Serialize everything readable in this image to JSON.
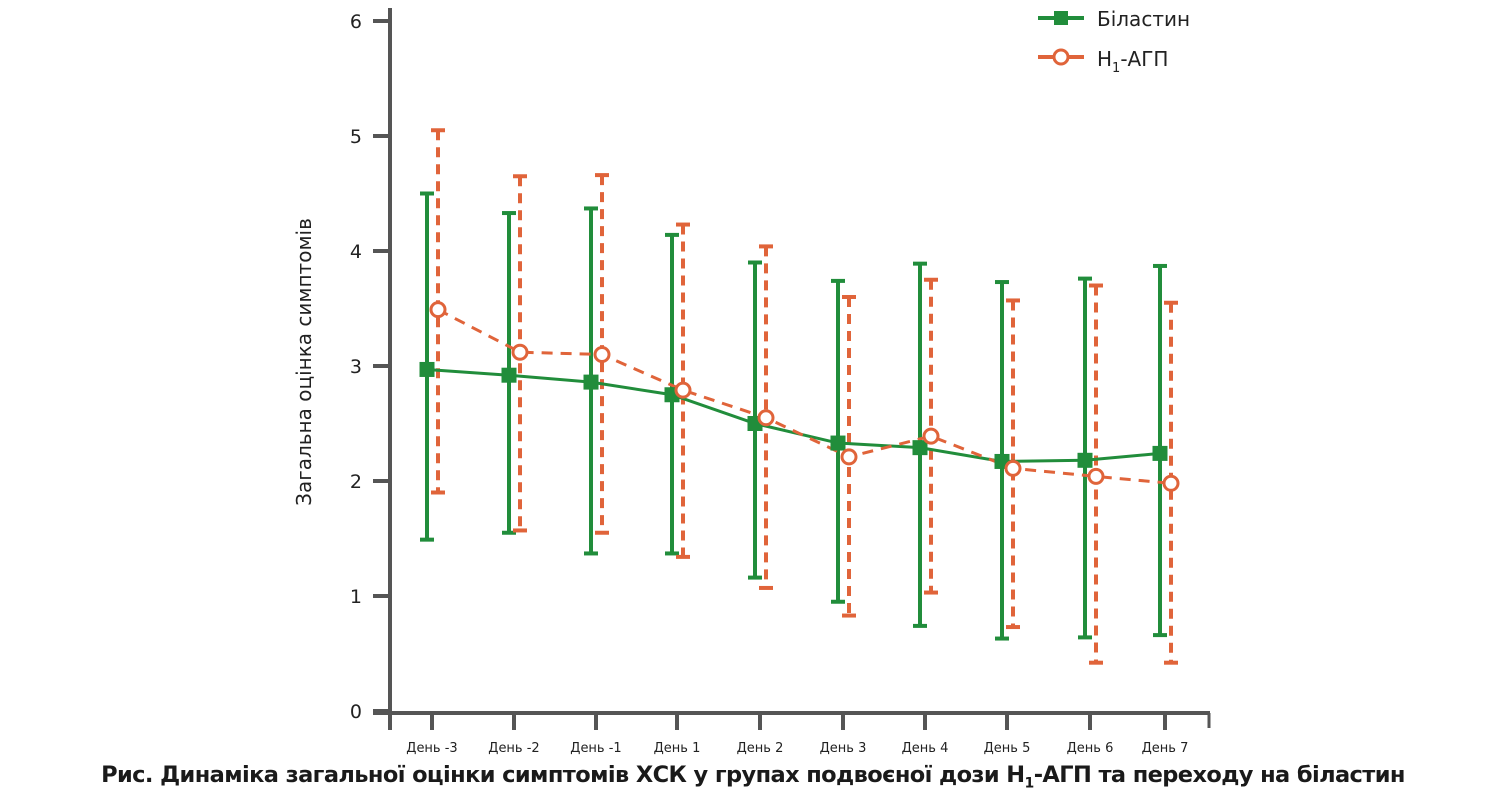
{
  "chart_data": {
    "type": "line",
    "title": "Рис. Динаміка загальної оцінки симптомів ХСК у групах подвоєної дози H1-АГП та переходу на біластин",
    "caption_parts": {
      "before": "Рис. Динаміка загальної оцінки симптомів ХСК у групах подвоєної дози H",
      "sub": "1",
      "after": "-АГП та переходу на біластин"
    },
    "xlabel": "",
    "ylabel": "Загальна оцінка симптомів",
    "ylim": [
      0,
      6
    ],
    "yticks": [
      "0",
      "1",
      "2",
      "3",
      "4",
      "5",
      "6"
    ],
    "grid": false,
    "legend_position": "top-right",
    "categories": [
      "День -3",
      "День -2",
      "День -1",
      "День 1",
      "День 2",
      "День 3",
      "День 4",
      "День 5",
      "День 6",
      "День 7"
    ],
    "series": [
      {
        "name": "Біластин",
        "legend_label": "Біластин",
        "color": "#218d3b",
        "marker": "filled-square",
        "line_style": "solid",
        "values": [
          2.97,
          2.92,
          2.86,
          2.75,
          2.5,
          2.33,
          2.29,
          2.17,
          2.18,
          2.24
        ],
        "upper": [
          4.5,
          4.33,
          4.37,
          4.14,
          3.9,
          3.74,
          3.89,
          3.73,
          3.76,
          3.87
        ],
        "lower": [
          1.49,
          1.55,
          1.37,
          1.37,
          1.16,
          0.95,
          0.74,
          0.63,
          0.64,
          0.66
        ]
      },
      {
        "name": "H1-АГП",
        "legend_label_main": "H",
        "legend_label_sub": "1",
        "legend_label_rest": "-АГП",
        "color": "#e0643a",
        "marker": "open-circle",
        "line_style": "dashed",
        "values": [
          3.49,
          3.12,
          3.1,
          2.79,
          2.55,
          2.21,
          2.39,
          2.11,
          2.04,
          1.98
        ],
        "upper": [
          5.05,
          4.65,
          4.66,
          4.23,
          4.04,
          3.6,
          3.75,
          3.57,
          3.7,
          3.55
        ],
        "lower": [
          1.9,
          1.57,
          1.55,
          1.34,
          1.07,
          0.83,
          1.03,
          0.73,
          0.42,
          0.42
        ]
      }
    ]
  }
}
